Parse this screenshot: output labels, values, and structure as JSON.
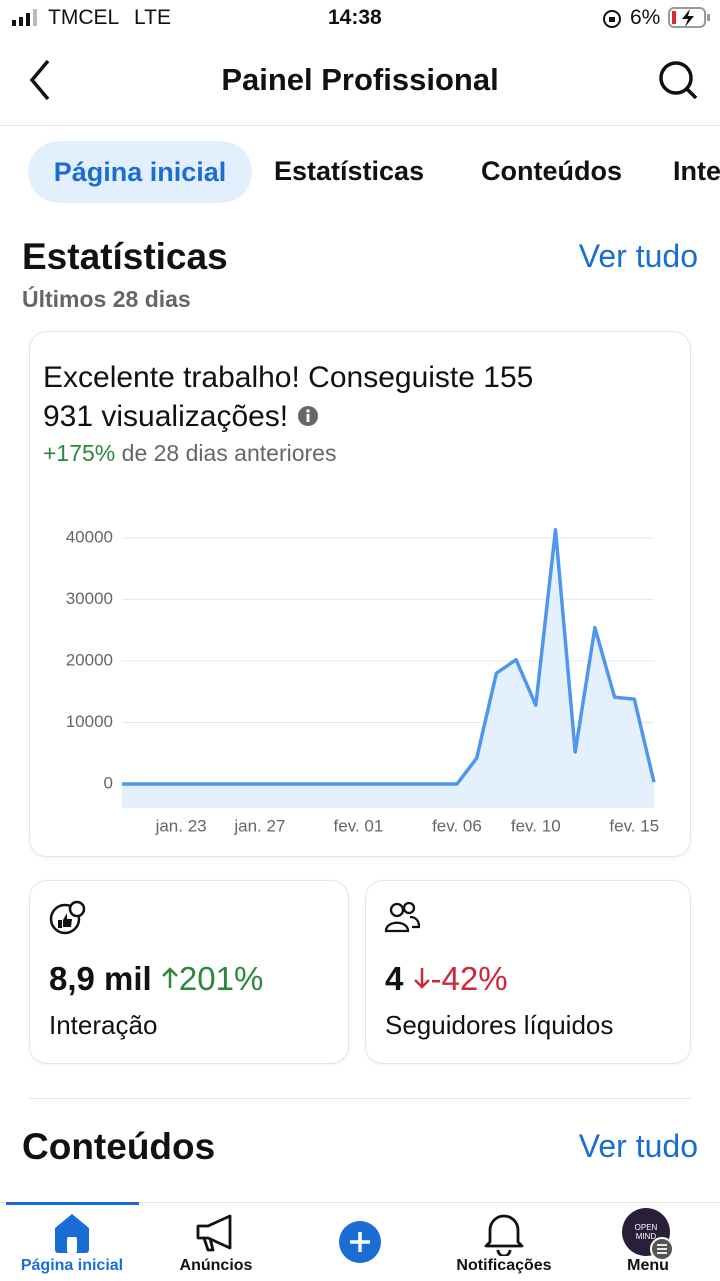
{
  "status_bar": {
    "carrier": "TMCEL",
    "network": "LTE",
    "time": "14:38",
    "battery": "6%"
  },
  "header": {
    "title": "Painel Profissional"
  },
  "tabs": [
    "Página inicial",
    "Estatísticas",
    "Conteúdos",
    "Inte"
  ],
  "stats_section": {
    "title": "Estatísticas",
    "link": "Ver tudo",
    "subtitle": "Últimos 28 dias"
  },
  "chart_data": {
    "type": "line",
    "title": "Excelente trabalho! Conseguiste 155 931 visualizações!",
    "change": "+175%",
    "change_note": "de 28 dias anteriores",
    "categories": [
      null,
      null,
      null,
      "jan. 23",
      null,
      null,
      null,
      "jan. 27",
      null,
      null,
      null,
      null,
      "fev. 01",
      null,
      null,
      null,
      null,
      "fev. 06",
      null,
      null,
      null,
      "fev. 10",
      null,
      null,
      null,
      null,
      "fev. 15",
      null
    ],
    "values": [
      0,
      0,
      0,
      0,
      0,
      0,
      0,
      0,
      0,
      0,
      0,
      0,
      0,
      0,
      0,
      0,
      0,
      0,
      4200,
      18000,
      20200,
      12800,
      41300,
      5200,
      25400,
      14100,
      13800,
      300
    ],
    "color": "#4f97ec",
    "area_color": "#e5f0fd",
    "ylim": [
      -3900,
      42900
    ],
    "yticks": [
      0,
      10000,
      20000,
      30000,
      40000
    ],
    "grid": true
  },
  "metrics": [
    {
      "value": "8,9 mil",
      "change": "201%",
      "label": "Interação"
    },
    {
      "value": "4",
      "change": "-42%",
      "label": "Seguidores líquidos"
    }
  ],
  "contents_section": {
    "title": "Conteúdos",
    "link": "Ver tudo"
  },
  "nav": {
    "items": [
      "Página inicial",
      "Anúncios",
      "Notificações",
      "Menu"
    ],
    "avatar_text": "OPEN MIND"
  }
}
